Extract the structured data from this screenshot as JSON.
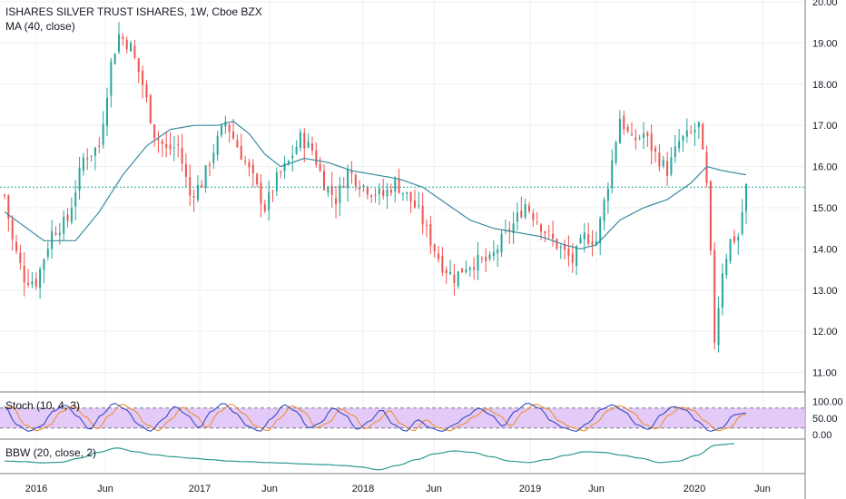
{
  "header": {
    "symbol_title": "ISHARES SILVER TRUST ISHARES, 1W, Cboe BZX",
    "ma_label": "MA (40, close)"
  },
  "indicators": {
    "stoch_label": "Stoch (10, 4, 3)",
    "bbw_label": "BBW (20, close, 2)"
  },
  "colors": {
    "up": "#26a69a",
    "down": "#ef5350",
    "ma": "#3a8ca0",
    "stoch_k": "#2b3fb8",
    "stoch_d": "#f08a24",
    "stoch_band": "#d9b8f5",
    "bbw": "#2a9a90",
    "last_price_line": "#26a69a",
    "grid": "#eef0f3",
    "pane_border": "#787b86"
  },
  "chart_data": {
    "type": "candlestick",
    "timeframe": "1W",
    "price_axis_ticks": [
      "20.00",
      "19.00",
      "18.00",
      "17.00",
      "16.00",
      "15.00",
      "14.00",
      "13.00",
      "12.00",
      "11.00"
    ],
    "time_axis_ticks": [
      "2016",
      "Jun",
      "2017",
      "Jun",
      "2018",
      "Jun",
      "2019",
      "Jun",
      "2020",
      "Jun"
    ],
    "price_range": [
      10.6,
      20.0
    ],
    "last_price": 15.5,
    "price_anchors": [
      {
        "t": 0,
        "p": 15.3
      },
      {
        "t": 2,
        "p": 14.2
      },
      {
        "t": 5,
        "p": 13.3
      },
      {
        "t": 8,
        "p": 13.2
      },
      {
        "t": 12,
        "p": 14.4
      },
      {
        "t": 16,
        "p": 14.7
      },
      {
        "t": 20,
        "p": 16.2
      },
      {
        "t": 24,
        "p": 16.5
      },
      {
        "t": 27,
        "p": 18.5
      },
      {
        "t": 29,
        "p": 19.2
      },
      {
        "t": 32,
        "p": 18.9
      },
      {
        "t": 35,
        "p": 18.0
      },
      {
        "t": 38,
        "p": 16.8
      },
      {
        "t": 41,
        "p": 16.4
      },
      {
        "t": 44,
        "p": 16.5
      },
      {
        "t": 47,
        "p": 15.3
      },
      {
        "t": 50,
        "p": 15.6
      },
      {
        "t": 53,
        "p": 16.4
      },
      {
        "t": 56,
        "p": 17.1
      },
      {
        "t": 59,
        "p": 16.5
      },
      {
        "t": 63,
        "p": 15.7
      },
      {
        "t": 66,
        "p": 15.0
      },
      {
        "t": 69,
        "p": 15.7
      },
      {
        "t": 72,
        "p": 16.1
      },
      {
        "t": 75,
        "p": 16.7
      },
      {
        "t": 78,
        "p": 16.4
      },
      {
        "t": 81,
        "p": 15.6
      },
      {
        "t": 84,
        "p": 15.2
      },
      {
        "t": 87,
        "p": 15.9
      },
      {
        "t": 90,
        "p": 15.6
      },
      {
        "t": 93,
        "p": 15.4
      },
      {
        "t": 96,
        "p": 15.3
      },
      {
        "t": 99,
        "p": 15.6
      },
      {
        "t": 102,
        "p": 15.3
      },
      {
        "t": 105,
        "p": 14.9
      },
      {
        "t": 108,
        "p": 14.2
      },
      {
        "t": 111,
        "p": 13.6
      },
      {
        "t": 114,
        "p": 13.3
      },
      {
        "t": 117,
        "p": 13.6
      },
      {
        "t": 120,
        "p": 13.7
      },
      {
        "t": 123,
        "p": 13.7
      },
      {
        "t": 126,
        "p": 14.2
      },
      {
        "t": 129,
        "p": 14.6
      },
      {
        "t": 132,
        "p": 15.1
      },
      {
        "t": 135,
        "p": 14.7
      },
      {
        "t": 138,
        "p": 14.3
      },
      {
        "t": 141,
        "p": 14.0
      },
      {
        "t": 144,
        "p": 13.7
      },
      {
        "t": 147,
        "p": 14.3
      },
      {
        "t": 150,
        "p": 14.2
      },
      {
        "t": 153,
        "p": 15.6
      },
      {
        "t": 156,
        "p": 17.2
      },
      {
        "t": 159,
        "p": 16.6
      },
      {
        "t": 162,
        "p": 16.8
      },
      {
        "t": 165,
        "p": 16.3
      },
      {
        "t": 168,
        "p": 15.9
      },
      {
        "t": 171,
        "p": 16.6
      },
      {
        "t": 174,
        "p": 16.8
      },
      {
        "t": 176,
        "p": 17.0
      },
      {
        "t": 178,
        "p": 15.5
      },
      {
        "t": 179,
        "p": 13.8
      },
      {
        "t": 180,
        "p": 11.8
      },
      {
        "t": 182,
        "p": 13.5
      },
      {
        "t": 184,
        "p": 14.2
      },
      {
        "t": 186,
        "p": 14.3
      },
      {
        "t": 188,
        "p": 15.5
      }
    ],
    "moving_average": {
      "name": "MA (40, close)",
      "period": 40,
      "values": [
        {
          "t": 0,
          "p": 14.9
        },
        {
          "t": 10,
          "p": 14.2
        },
        {
          "t": 18,
          "p": 14.2
        },
        {
          "t": 24,
          "p": 14.9
        },
        {
          "t": 30,
          "p": 15.8
        },
        {
          "t": 36,
          "p": 16.5
        },
        {
          "t": 42,
          "p": 16.9
        },
        {
          "t": 48,
          "p": 17.0
        },
        {
          "t": 54,
          "p": 17.0
        },
        {
          "t": 58,
          "p": 17.1
        },
        {
          "t": 62,
          "p": 16.8
        },
        {
          "t": 66,
          "p": 16.3
        },
        {
          "t": 70,
          "p": 16.0
        },
        {
          "t": 76,
          "p": 16.2
        },
        {
          "t": 82,
          "p": 16.1
        },
        {
          "t": 88,
          "p": 15.9
        },
        {
          "t": 94,
          "p": 15.8
        },
        {
          "t": 100,
          "p": 15.7
        },
        {
          "t": 106,
          "p": 15.5
        },
        {
          "t": 112,
          "p": 15.1
        },
        {
          "t": 118,
          "p": 14.7
        },
        {
          "t": 124,
          "p": 14.5
        },
        {
          "t": 130,
          "p": 14.4
        },
        {
          "t": 136,
          "p": 14.3
        },
        {
          "t": 142,
          "p": 14.1
        },
        {
          "t": 146,
          "p": 14.0
        },
        {
          "t": 150,
          "p": 14.1
        },
        {
          "t": 156,
          "p": 14.7
        },
        {
          "t": 162,
          "p": 15.0
        },
        {
          "t": 168,
          "p": 15.2
        },
        {
          "t": 174,
          "p": 15.6
        },
        {
          "t": 178,
          "p": 16.0
        },
        {
          "t": 182,
          "p": 15.9
        },
        {
          "t": 188,
          "p": 15.8
        }
      ]
    },
    "stochastic": {
      "name": "Stoch (10, 4, 3)",
      "axis_ticks": [
        "100.00",
        "50.00",
        "0.00"
      ],
      "upper_band": 80,
      "lower_band": 20,
      "k_anchors": [
        85,
        30,
        10,
        25,
        70,
        90,
        55,
        15,
        60,
        95,
        75,
        30,
        10,
        45,
        85,
        60,
        20,
        70,
        95,
        65,
        25,
        10,
        50,
        90,
        70,
        20,
        35,
        80,
        60,
        15,
        40,
        75,
        30,
        10,
        45,
        20,
        10,
        30,
        55,
        80,
        60,
        25,
        70,
        95,
        80,
        40,
        20,
        10,
        35,
        75,
        90,
        70,
        30,
        15,
        60,
        85,
        75,
        40,
        10,
        20,
        60,
        65
      ],
      "d_offset": 2
    },
    "bbw": {
      "name": "BBW (20, close, 2)",
      "anchors": [
        0.4,
        0.38,
        0.34,
        0.36,
        0.5,
        0.7,
        0.85,
        0.72,
        0.62,
        0.55,
        0.5,
        0.45,
        0.4,
        0.38,
        0.35,
        0.33,
        0.3,
        0.28,
        0.25,
        0.2,
        0.1,
        0.25,
        0.45,
        0.65,
        0.75,
        0.7,
        0.55,
        0.4,
        0.35,
        0.45,
        0.6,
        0.72,
        0.7,
        0.6,
        0.5,
        0.35,
        0.4,
        0.6,
        0.95,
        1.0
      ]
    }
  }
}
